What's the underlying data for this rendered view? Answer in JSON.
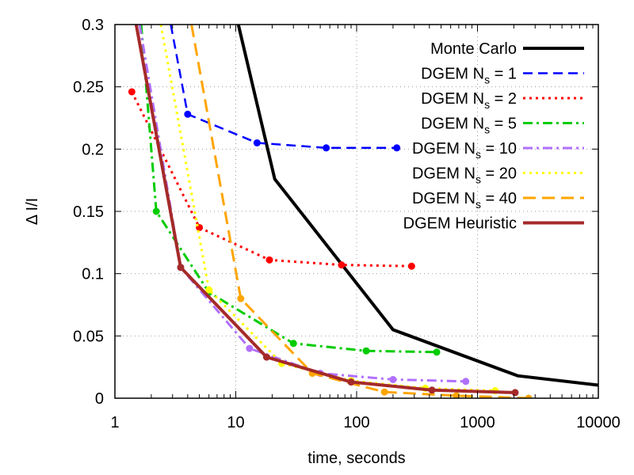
{
  "chart_data": {
    "type": "line",
    "xlabel": "time, seconds",
    "ylabel": "Δ I/I",
    "x_scale": "log",
    "xlim": [
      1,
      10000
    ],
    "ylim": [
      0,
      0.3
    ],
    "grid": true,
    "legend_position": "top-right",
    "x_ticks": [
      {
        "value": 1,
        "label": "1"
      },
      {
        "value": 10,
        "label": "10"
      },
      {
        "value": 100,
        "label": "100"
      },
      {
        "value": 1000,
        "label": "1000"
      },
      {
        "value": 10000,
        "label": "10000"
      }
    ],
    "y_ticks": [
      {
        "value": 0,
        "label": "0"
      },
      {
        "value": 0.05,
        "label": "0.05"
      },
      {
        "value": 0.1,
        "label": "0.1"
      },
      {
        "value": 0.15,
        "label": "0.15"
      },
      {
        "value": 0.2,
        "label": "0.2"
      },
      {
        "value": 0.25,
        "label": "0.25"
      },
      {
        "value": 0.3,
        "label": "0.3"
      }
    ],
    "series": [
      {
        "name": "Monte Carlo",
        "label_main": "Monte Carlo",
        "label_sub": "",
        "label_tail": "",
        "color": "#000000",
        "dash": "",
        "width": 4,
        "markers": false,
        "points": [
          [
            10.5,
            0.3
          ],
          [
            21,
            0.176
          ],
          [
            200,
            0.055
          ],
          [
            2150,
            0.018
          ],
          [
            10000,
            0.0105
          ]
        ]
      },
      {
        "name": "DGEM Ns = 1",
        "label_main": "DGEM N",
        "label_sub": "s",
        "label_tail": " =   1",
        "color": "#0000ff",
        "dash": "12,7",
        "width": 2.5,
        "markers": true,
        "points": [
          [
            2.9,
            0.3
          ],
          [
            4,
            0.228
          ],
          [
            15,
            0.205
          ],
          [
            56,
            0.201
          ],
          [
            215,
            0.201
          ]
        ]
      },
      {
        "name": "DGEM Ns = 2",
        "label_main": "DGEM N",
        "label_sub": "s",
        "label_tail": " =   2",
        "color": "#ff0000",
        "dash": "3,5",
        "width": 3,
        "markers": true,
        "points": [
          [
            1.38,
            0.246
          ],
          [
            5,
            0.137
          ],
          [
            19,
            0.111
          ],
          [
            75,
            0.107
          ],
          [
            285,
            0.106
          ]
        ]
      },
      {
        "name": "DGEM Ns = 5",
        "label_main": "DGEM N",
        "label_sub": "s",
        "label_tail": " =   5",
        "color": "#00cc00",
        "dash": "12,5,3,5",
        "width": 3,
        "markers": true,
        "points": [
          [
            1.65,
            0.3
          ],
          [
            2.2,
            0.15
          ],
          [
            6,
            0.085
          ],
          [
            30,
            0.044
          ],
          [
            120,
            0.038
          ],
          [
            460,
            0.037
          ]
        ]
      },
      {
        "name": "DGEM Ns = 10",
        "label_main": "DGEM N",
        "label_sub": "s",
        "label_tail": " = 10",
        "color": "#b070ff",
        "dash": "12,5,3,5",
        "width": 3,
        "markers": true,
        "points": [
          [
            1.6,
            0.3
          ],
          [
            3.5,
            0.105
          ],
          [
            13,
            0.04
          ],
          [
            50,
            0.02
          ],
          [
            200,
            0.015
          ],
          [
            800,
            0.0135
          ]
        ]
      },
      {
        "name": "DGEM Ns = 20",
        "label_main": "DGEM N",
        "label_sub": "s",
        "label_tail": " = 20",
        "color": "#ffff00",
        "dash": "3,5",
        "width": 3,
        "markers": true,
        "points": [
          [
            2.4,
            0.3
          ],
          [
            6,
            0.087
          ],
          [
            24,
            0.028
          ],
          [
            90,
            0.014
          ],
          [
            370,
            0.008
          ],
          [
            1400,
            0.006
          ]
        ]
      },
      {
        "name": "DGEM Ns = 40",
        "label_main": "DGEM N",
        "label_sub": "s",
        "label_tail": " = 40",
        "color": "#ffa500",
        "dash": "16,8",
        "width": 3,
        "markers": true,
        "points": [
          [
            4.3,
            0.3
          ],
          [
            11,
            0.08
          ],
          [
            43,
            0.02
          ],
          [
            170,
            0.005
          ],
          [
            670,
            0.002
          ],
          [
            2650,
            0.0
          ]
        ]
      },
      {
        "name": "DGEM Heuristic",
        "label_main": "DGEM Heuristic",
        "label_sub": "",
        "label_tail": "",
        "color": "#a52a2a",
        "dash": "",
        "width": 4,
        "markers": true,
        "points": [
          [
            1.5,
            0.3
          ],
          [
            3.5,
            0.105
          ],
          [
            18,
            0.033
          ],
          [
            90,
            0.013
          ],
          [
            420,
            0.0065
          ],
          [
            2050,
            0.0045
          ]
        ]
      }
    ]
  }
}
